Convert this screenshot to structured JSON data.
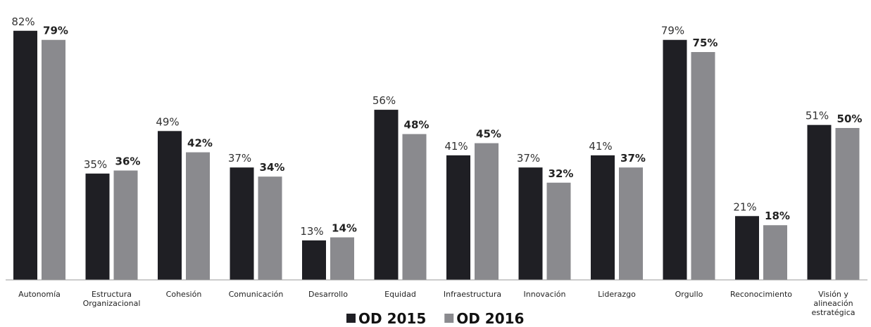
{
  "chart_data": {
    "type": "bar",
    "categories": [
      "Autonomía",
      "Estructura Organizacional",
      "Cohesión",
      "Comunicación",
      "Desarrollo",
      "Equidad",
      "Infraestructura",
      "Innovación",
      "Liderazgo",
      "Orgullo",
      "Reconocimiento",
      "Visión y alineación estratégica"
    ],
    "series": [
      {
        "name": "OD 2015",
        "color": "#1f1f24",
        "values": [
          82,
          35,
          49,
          37,
          13,
          56,
          41,
          37,
          41,
          79,
          21,
          51
        ],
        "value_labels": [
          "82%",
          "35%",
          "49%",
          "37%",
          "13%",
          "56%",
          "41%",
          "37%",
          "41%",
          "79%",
          "21%",
          "51%"
        ]
      },
      {
        "name": "OD 2016",
        "color": "#8a8a8e",
        "values": [
          79,
          36,
          42,
          34,
          14,
          48,
          45,
          32,
          37,
          75,
          18,
          50
        ],
        "value_labels": [
          "79%",
          "36%",
          "42%",
          "34%",
          "14%",
          "48%",
          "45%",
          "32%",
          "37%",
          "75%",
          "18%",
          "50%"
        ]
      }
    ],
    "legend": "bottom"
  }
}
